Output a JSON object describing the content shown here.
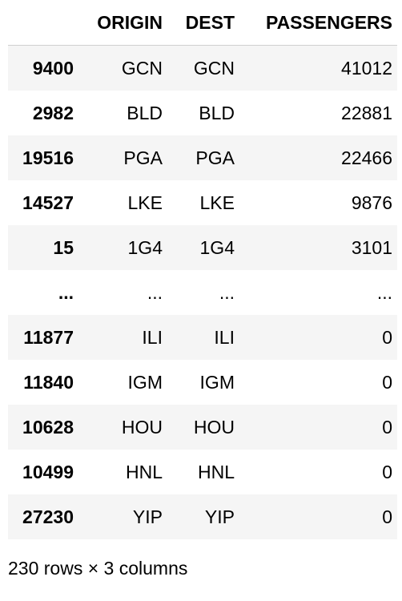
{
  "table": {
    "columns": {
      "index": "",
      "origin": "ORIGIN",
      "dest": "DEST",
      "passengers": "PASSENGERS"
    },
    "rows": [
      {
        "index": "9400",
        "origin": "GCN",
        "dest": "GCN",
        "passengers": "41012"
      },
      {
        "index": "2982",
        "origin": "BLD",
        "dest": "BLD",
        "passengers": "22881"
      },
      {
        "index": "19516",
        "origin": "PGA",
        "dest": "PGA",
        "passengers": "22466"
      },
      {
        "index": "14527",
        "origin": "LKE",
        "dest": "LKE",
        "passengers": "9876"
      },
      {
        "index": "15",
        "origin": "1G4",
        "dest": "1G4",
        "passengers": "3101"
      },
      {
        "index": "...",
        "origin": "...",
        "dest": "...",
        "passengers": "..."
      },
      {
        "index": "11877",
        "origin": "ILI",
        "dest": "ILI",
        "passengers": "0"
      },
      {
        "index": "11840",
        "origin": "IGM",
        "dest": "IGM",
        "passengers": "0"
      },
      {
        "index": "10628",
        "origin": "HOU",
        "dest": "HOU",
        "passengers": "0"
      },
      {
        "index": "10499",
        "origin": "HNL",
        "dest": "HNL",
        "passengers": "0"
      },
      {
        "index": "27230",
        "origin": "YIP",
        "dest": "YIP",
        "passengers": "0"
      }
    ]
  },
  "caption": "230 rows × 3 columns",
  "colors": {
    "stripe": "#f5f5f5",
    "header_border": "#d0d0d0",
    "text": "#000000"
  }
}
